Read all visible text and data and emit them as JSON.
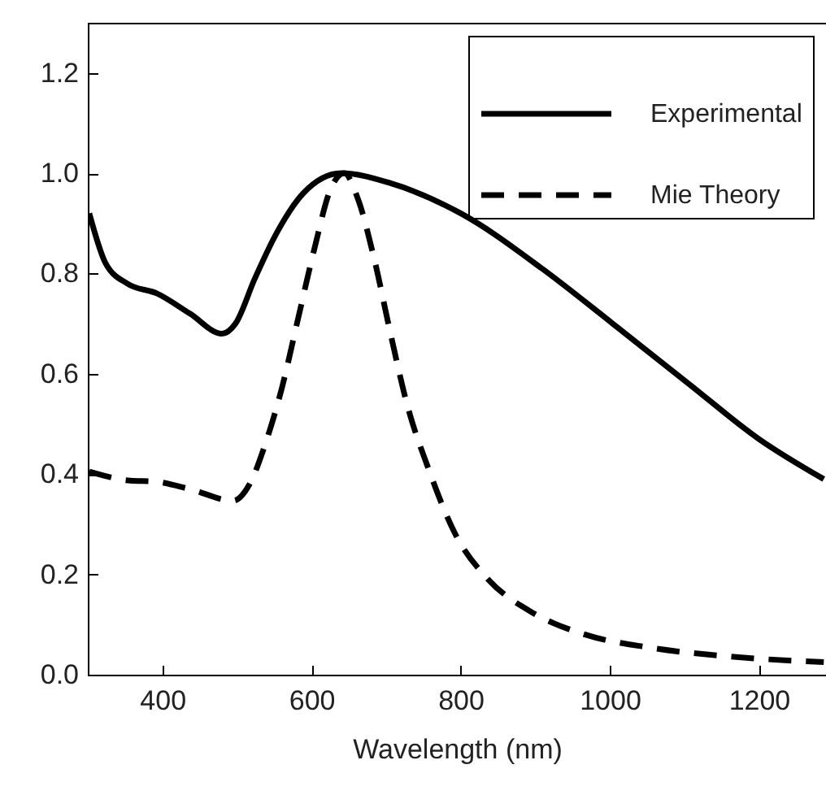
{
  "chart_data": {
    "type": "line",
    "xlabel": "Wavelength (nm)",
    "xlim": [
      300,
      1290
    ],
    "xticks": [
      400,
      600,
      800,
      1000,
      1200
    ],
    "ylim": [
      0,
      1.3
    ],
    "yticks": [
      {
        "value": 0,
        "label": "0.0"
      },
      0.2,
      0.4,
      0.6,
      0.8,
      {
        "value": 1,
        "label": "1.0"
      },
      1.2
    ],
    "legend": "top right",
    "grid": false,
    "series": [
      {
        "name": "Experimental",
        "color": "#000000",
        "line_style": "solid",
        "x": [
          302,
          324,
          353,
          393,
          437,
          480,
          498,
          524,
          553,
          589,
          640,
          706,
          800,
          909,
          1004,
          1106,
          1200,
          1287
        ],
        "values": [
          0.92,
          0.82,
          0.78,
          0.76,
          0.72,
          0.68,
          0.7,
          0.79,
          0.88,
          0.96,
          1.0,
          0.98,
          0.92,
          0.81,
          0.7,
          0.58,
          0.47,
          0.39
        ]
      },
      {
        "name": "Mie Theory",
        "color": "#000000",
        "line_style": "dashed",
        "x": [
          302,
          357,
          390,
          437,
          495,
          517,
          538,
          560,
          582,
          604,
          626,
          644,
          662,
          684,
          706,
          728,
          757,
          793,
          837,
          895,
          967,
          1054,
          1163,
          1287
        ],
        "values": [
          0.405,
          0.387,
          0.385,
          0.37,
          0.347,
          0.38,
          0.46,
          0.57,
          0.71,
          0.85,
          0.97,
          1.0,
          0.95,
          0.83,
          0.68,
          0.54,
          0.41,
          0.28,
          0.19,
          0.125,
          0.08,
          0.054,
          0.036,
          0.025
        ]
      }
    ]
  }
}
